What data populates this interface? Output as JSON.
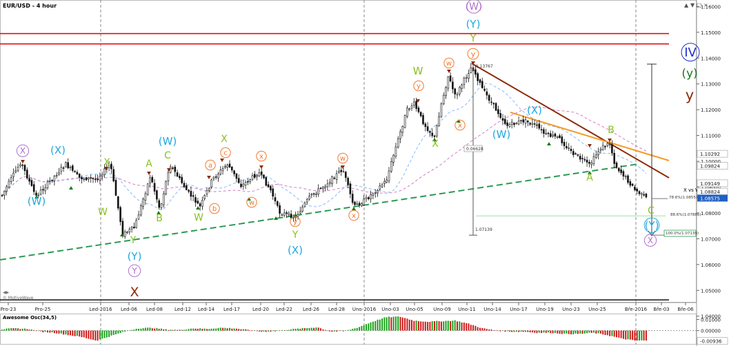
{
  "title": "EUR/USD - 4 hour",
  "osc_title": "Awesome Osc(34,5)",
  "watermark": "© MotiveWave",
  "price_axis": {
    "ticks": [
      "1.16000",
      "1.15000",
      "1.14000",
      "1.13000",
      "1.12000",
      "1.11000",
      "1.10000",
      "1.09000",
      "1.08000",
      "1.07000",
      "1.06000",
      "1.05000",
      "1.04000"
    ],
    "tags": [
      {
        "text": "1.10292",
        "price": 1.10292,
        "style": "plain"
      },
      {
        "text": "1.09824",
        "price": 1.09824,
        "style": "plain"
      },
      {
        "text": "1.09149",
        "price": 1.09149,
        "style": "plain"
      },
      {
        "text": "1.08824",
        "price": 1.08824,
        "style": "plain"
      },
      {
        "text": "1.08575",
        "price": 1.08575,
        "style": "current"
      }
    ]
  },
  "osc_axis": {
    "ticks": [
      "0.01000",
      "0.00000"
    ],
    "tags": [
      {
        "text": "-0.00936",
        "value": -0.00936
      }
    ]
  },
  "x_axis": {
    "ticks": [
      {
        "x": 12,
        "label": "Pro-23"
      },
      {
        "x": 62,
        "label": "Pro-25"
      },
      {
        "x": 146,
        "label": "Led-2016"
      },
      {
        "x": 187,
        "label": "Led-06"
      },
      {
        "x": 224,
        "label": "Led-08"
      },
      {
        "x": 265,
        "label": "Led-12"
      },
      {
        "x": 299,
        "label": "Led-14"
      },
      {
        "x": 336,
        "label": "Led-17"
      },
      {
        "x": 378,
        "label": "Led-20"
      },
      {
        "x": 412,
        "label": "Led-22"
      },
      {
        "x": 451,
        "label": "Led-26"
      },
      {
        "x": 488,
        "label": "Led-28"
      },
      {
        "x": 528,
        "label": "Uno-2016"
      },
      {
        "x": 566,
        "label": "Uno-03"
      },
      {
        "x": 601,
        "label": "Uno-05"
      },
      {
        "x": 641,
        "label": "Uno-09"
      },
      {
        "x": 677,
        "label": "Uno-11"
      },
      {
        "x": 714,
        "label": "Uno-14"
      },
      {
        "x": 752,
        "label": "Uno-17"
      },
      {
        "x": 790,
        "label": "Uno-19"
      },
      {
        "x": 828,
        "label": "Uno-23"
      },
      {
        "x": 866,
        "label": "Uno-25"
      },
      {
        "x": 922,
        "label": "Bře-2016"
      },
      {
        "x": 959,
        "label": "Bře-03"
      },
      {
        "x": 994,
        "label": "Bře-06"
      }
    ]
  },
  "annotations": [
    {
      "text": "1.13767",
      "x": 690,
      "y": 98,
      "size": 6,
      "color": "#333333"
    },
    {
      "text": "0.06628",
      "x": 676,
      "y": 218,
      "size": 6,
      "color": "#333333"
    },
    {
      "text": "1.07139",
      "x": 689,
      "y": 335,
      "size": 6,
      "color": "#333333"
    },
    {
      "text": "X vs W",
      "x": 991,
      "y": 278,
      "size": 7,
      "color": "#000000"
    },
    {
      "text": "78.6%(1.08557)",
      "x": 970,
      "y": 288,
      "size": 5.5,
      "color": "#333333"
    },
    {
      "text": "88.6%(1.07886)",
      "x": 972,
      "y": 313,
      "size": 5.5,
      "color": "#333333"
    },
    {
      "text": "100.0%(1.07139)",
      "x": 965,
      "y": 340,
      "size": 5.5,
      "color": "#333333"
    }
  ],
  "wave_labels": [
    {
      "t": "(W)",
      "x": 687,
      "y": 14,
      "c": "#b070d0",
      "s": 14,
      "circle": true
    },
    {
      "t": "(Y)",
      "x": 686,
      "y": 40,
      "c": "#20a8e0",
      "s": 15
    },
    {
      "t": "Y",
      "x": 686,
      "y": 60,
      "c": "#88c020",
      "s": 14
    },
    {
      "t": "y",
      "x": 686,
      "y": 82,
      "c": "#f07830",
      "s": 11,
      "circle": true
    },
    {
      "t": "IV",
      "x": 1001,
      "y": 82,
      "c": "#2030c8",
      "s": 18,
      "circle": true
    },
    {
      "t": "(y)",
      "x": 1000,
      "y": 112,
      "c": "#1a7a1a",
      "s": 17
    },
    {
      "t": "y",
      "x": 1000,
      "y": 145,
      "c": "#8b2a0a",
      "s": 21
    },
    {
      "t": "W",
      "x": 606,
      "y": 108,
      "c": "#88c020",
      "s": 15
    },
    {
      "t": "w",
      "x": 651,
      "y": 95,
      "c": "#f07830",
      "s": 10,
      "circle": true
    },
    {
      "t": "y",
      "x": 607,
      "y": 128,
      "c": "#f07830",
      "s": 10,
      "circle": true
    },
    {
      "t": "x",
      "x": 667,
      "y": 185,
      "c": "#f07830",
      "s": 10,
      "circle": true
    },
    {
      "t": "X",
      "x": 631,
      "y": 213,
      "c": "#88c020",
      "s": 14
    },
    {
      "t": "(X)",
      "x": 775,
      "y": 165,
      "c": "#20a8e0",
      "s": 15
    },
    {
      "t": "(W)",
      "x": 727,
      "y": 200,
      "c": "#20a8e0",
      "s": 15
    },
    {
      "t": "B",
      "x": 886,
      "y": 193,
      "c": "#88c020",
      "s": 14
    },
    {
      "t": "A",
      "x": 855,
      "y": 262,
      "c": "#88c020",
      "s": 14
    },
    {
      "t": "C",
      "x": 944,
      "y": 310,
      "c": "#88c020",
      "s": 14
    },
    {
      "t": "(Y)",
      "x": 945,
      "y": 332,
      "c": "#20a8e0",
      "s": 15,
      "circle": true
    },
    {
      "t": "X",
      "x": 943,
      "y": 353,
      "c": "#b070d0",
      "s": 12,
      "circle": true
    },
    {
      "t": "X",
      "x": 33,
      "y": 223,
      "c": "#b070d0",
      "s": 12,
      "circle": true
    },
    {
      "t": "(X)",
      "x": 84,
      "y": 223,
      "c": "#20a8e0",
      "s": 15
    },
    {
      "t": "(W)",
      "x": 53,
      "y": 297,
      "c": "#20a8e0",
      "s": 15
    },
    {
      "t": "X",
      "x": 155,
      "y": 240,
      "c": "#88c020",
      "s": 14
    },
    {
      "t": "W",
      "x": 149,
      "y": 312,
      "c": "#88c020",
      "s": 14
    },
    {
      "t": "Y",
      "x": 193,
      "y": 353,
      "c": "#88c020",
      "s": 14
    },
    {
      "t": "(Y)",
      "x": 195,
      "y": 377,
      "c": "#20a8e0",
      "s": 15
    },
    {
      "t": "Y",
      "x": 195,
      "y": 397,
      "c": "#b070d0",
      "s": 12,
      "circle": true
    },
    {
      "t": "X",
      "x": 195,
      "y": 430,
      "c": "#8b2a0a",
      "s": 19
    },
    {
      "t": "A",
      "x": 216,
      "y": 242,
      "c": "#88c020",
      "s": 14
    },
    {
      "t": "B",
      "x": 231,
      "y": 321,
      "c": "#88c020",
      "s": 14
    },
    {
      "t": "C",
      "x": 243,
      "y": 230,
      "c": "#88c020",
      "s": 14
    },
    {
      "t": "(W)",
      "x": 243,
      "y": 210,
      "c": "#20a8e0",
      "s": 15
    },
    {
      "t": "W",
      "x": 288,
      "y": 320,
      "c": "#88c020",
      "s": 14
    },
    {
      "t": "X",
      "x": 325,
      "y": 206,
      "c": "#88c020",
      "s": 14
    },
    {
      "t": "a",
      "x": 305,
      "y": 243,
      "c": "#f07830",
      "s": 10,
      "circle": true
    },
    {
      "t": "b",
      "x": 311,
      "y": 306,
      "c": "#f07830",
      "s": 10,
      "circle": true
    },
    {
      "t": "c",
      "x": 327,
      "y": 225,
      "c": "#f07830",
      "s": 10,
      "circle": true
    },
    {
      "t": "w",
      "x": 365,
      "y": 297,
      "c": "#f07830",
      "s": 10,
      "circle": true
    },
    {
      "t": "x",
      "x": 379,
      "y": 230,
      "c": "#f07830",
      "s": 10,
      "circle": true
    },
    {
      "t": "y",
      "x": 428,
      "y": 325,
      "c": "#f07830",
      "s": 10,
      "circle": true
    },
    {
      "t": "Y",
      "x": 428,
      "y": 345,
      "c": "#88c020",
      "s": 14
    },
    {
      "t": "(X)",
      "x": 428,
      "y": 368,
      "c": "#20a8e0",
      "s": 15
    },
    {
      "t": "w",
      "x": 497,
      "y": 233,
      "c": "#f07830",
      "s": 10,
      "circle": true
    },
    {
      "t": "x",
      "x": 513,
      "y": 316,
      "c": "#f07830",
      "s": 10,
      "circle": true
    }
  ],
  "chart_data": {
    "type": "candlestick",
    "title": "EUR/USD - 4 hour",
    "ylim": [
      1.045,
      1.1625
    ],
    "close_series": [
      {
        "label": "Pro-23",
        "close": 1.0935
      },
      {
        "label": "Pro-24",
        "close": 1.0972
      },
      {
        "label": "Pro-25",
        "close": 1.0982
      },
      {
        "label": "Pro-28",
        "close": 1.0948
      },
      {
        "label": "Pro-30",
        "close": 1.0925
      },
      {
        "label": "Led-2016",
        "close": 1.087
      },
      {
        "label": "Led-05",
        "close": 1.0755
      },
      {
        "label": "Led-06",
        "close": 1.0738
      },
      {
        "label": "Led-07",
        "close": 1.0865
      },
      {
        "label": "Led-08",
        "close": 1.0925
      },
      {
        "label": "Led-11",
        "close": 1.088
      },
      {
        "label": "Led-12",
        "close": 1.0857
      },
      {
        "label": "Led-13",
        "close": 1.0882
      },
      {
        "label": "Led-14",
        "close": 1.0865
      },
      {
        "label": "Led-15",
        "close": 1.092
      },
      {
        "label": "Led-18",
        "close": 1.0898
      },
      {
        "label": "Led-19",
        "close": 1.0905
      },
      {
        "label": "Led-20",
        "close": 1.092
      },
      {
        "label": "Led-21",
        "close": 1.0862
      },
      {
        "label": "Led-22",
        "close": 1.0822
      },
      {
        "label": "Led-25",
        "close": 1.085
      },
      {
        "label": "Led-26",
        "close": 1.0868
      },
      {
        "label": "Led-27",
        "close": 1.0945
      },
      {
        "label": "Led-28",
        "close": 1.0915
      },
      {
        "label": "Led-29",
        "close": 1.0832
      },
      {
        "label": "Uno-2016",
        "close": 1.0885
      },
      {
        "label": "Uno-02",
        "close": 1.0905
      },
      {
        "label": "Uno-03",
        "close": 1.1105
      },
      {
        "label": "Uno-04",
        "close": 1.1205
      },
      {
        "label": "Uno-05",
        "close": 1.1195
      },
      {
        "label": "Uno-08",
        "close": 1.1138
      },
      {
        "label": "Uno-09",
        "close": 1.1275
      },
      {
        "label": "Uno-10",
        "close": 1.129
      },
      {
        "label": "Uno-11",
        "close": 1.1335
      },
      {
        "label": "Uno-12",
        "close": 1.1245
      },
      {
        "label": "Uno-15",
        "close": 1.1165
      },
      {
        "label": "Uno-16",
        "close": 1.1145
      },
      {
        "label": "Uno-17",
        "close": 1.1132
      },
      {
        "label": "Uno-18",
        "close": 1.1115
      },
      {
        "label": "Uno-19",
        "close": 1.1105
      },
      {
        "label": "Uno-22",
        "close": 1.1055
      },
      {
        "label": "Uno-23",
        "close": 1.1032
      },
      {
        "label": "Uno-24",
        "close": 1.1045
      },
      {
        "label": "Uno-25",
        "close": 1.1065
      },
      {
        "label": "Uno-26",
        "close": 1.0955
      },
      {
        "label": "Uno-29",
        "close": 1.0905
      },
      {
        "label": "Bře-01",
        "close": 1.0868
      },
      {
        "label": "Bře-02",
        "close": 1.0858
      }
    ],
    "levels": [
      {
        "name": "red-line-upper",
        "price": 1.1495
      },
      {
        "name": "red-line-lower",
        "price": 1.1455
      },
      {
        "name": "black-line-bottom",
        "price": 1.0463
      }
    ],
    "fibonacci": [
      {
        "label": "78.6%",
        "price": 1.08557
      },
      {
        "label": "88.6%",
        "price": 1.07886
      },
      {
        "label": "100.0%",
        "price": 1.07139
      }
    ],
    "measure": {
      "high": 1.13767,
      "low": 1.07139,
      "range": 0.06628
    },
    "oscillator": {
      "name": "Awesome Osc(34,5)",
      "ylim": [
        -0.012,
        0.014
      ],
      "last_value": -0.00936,
      "values": [
        0.001,
        0.002,
        0.0015,
        -0.001,
        -0.002,
        -0.004,
        -0.006,
        -0.009,
        -0.005,
        -0.001,
        0.002,
        0.0025,
        0.001,
        0.0005,
        0.002,
        0.0015,
        0.0025,
        0.002,
        0.0005,
        -0.001,
        -0.0005,
        0.001,
        0.002,
        0.003,
        -0.001,
        -0.0005,
        0.003,
        0.008,
        0.012,
        0.0125,
        0.009,
        0.008,
        0.0085,
        0.009,
        0.006,
        0.002,
        0.0,
        -0.001,
        -0.001,
        -0.002,
        -0.002,
        -0.003,
        -0.003,
        -0.002,
        -0.004,
        -0.007,
        -0.009,
        -0.009
      ]
    }
  }
}
